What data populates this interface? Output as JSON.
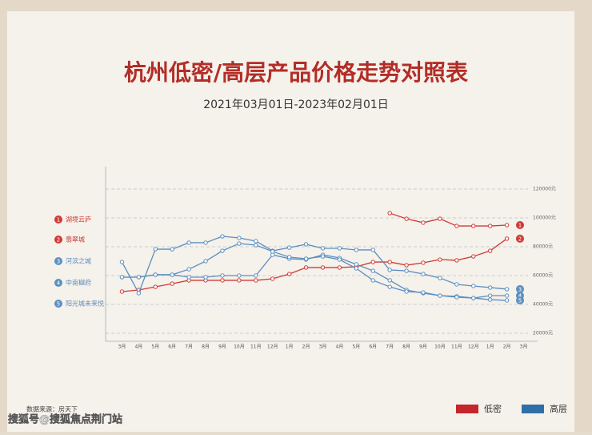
{
  "chart_data": {
    "type": "line",
    "title": "杭州低密/高层产品价格走势对照表",
    "subtitle": "2021年03月01日-2023年02月01日",
    "source": "数据来源：房天下",
    "watermark": "搜狐号@搜狐焦点荆门站",
    "categories": [
      "3月",
      "4月",
      "5月",
      "6月",
      "7月",
      "8月",
      "9月",
      "10月",
      "11月",
      "12月",
      "1月",
      "2月",
      "3月",
      "4月",
      "5月",
      "6月",
      "7月",
      "8月",
      "9月",
      "10月",
      "11月",
      "12月",
      "1月",
      "2月",
      "3月"
    ],
    "ylim": [
      15000,
      135000
    ],
    "yticks": [
      {
        "value": 20000,
        "label": "20000元"
      },
      {
        "value": 40000,
        "label": "40000元"
      },
      {
        "value": 60000,
        "label": "60000元"
      },
      {
        "value": 80000,
        "label": "80000元"
      },
      {
        "value": 100000,
        "label": "100000元"
      },
      {
        "value": 120000,
        "label": "120000元"
      }
    ],
    "grid": true,
    "groups": [
      {
        "name": "低密",
        "color": "#c4262b"
      },
      {
        "name": "高层",
        "color": "#2f6fa8"
      }
    ],
    "series": [
      {
        "name": "湖境云庐",
        "label": "1",
        "color": "#cf3a36",
        "values": [
          null,
          null,
          null,
          null,
          null,
          null,
          null,
          null,
          null,
          null,
          null,
          null,
          null,
          null,
          null,
          null,
          103300,
          99400,
          96700,
          99400,
          94400,
          94400,
          94400,
          95000,
          null
        ]
      },
      {
        "name": "翡翠城",
        "label": "2",
        "color": "#cf3a36",
        "values": [
          48900,
          50000,
          52200,
          54400,
          56700,
          56700,
          56700,
          56700,
          56700,
          57800,
          61100,
          65600,
          65600,
          65600,
          66100,
          69400,
          69400,
          67200,
          68900,
          71100,
          70600,
          73300,
          77200,
          85600,
          null
        ]
      },
      {
        "name": "河滨之城",
        "label": "3",
        "color": "#5b8fbf",
        "values": [
          69400,
          47800,
          78300,
          78300,
          82800,
          82800,
          87200,
          86100,
          83900,
          77200,
          79400,
          81700,
          78900,
          78900,
          77800,
          77800,
          63900,
          63300,
          61100,
          58300,
          53900,
          52800,
          51700,
          50600,
          null
        ]
      },
      {
        "name": "中南樾府",
        "label": "4",
        "color": "#5b8fbf",
        "values": [
          58900,
          58900,
          60600,
          60600,
          58900,
          58900,
          60000,
          60000,
          60000,
          74400,
          71700,
          71100,
          74400,
          72200,
          67800,
          63300,
          56700,
          50000,
          47800,
          46100,
          45600,
          44400,
          46100,
          46100,
          null
        ]
      },
      {
        "name": "阳光城未来悦",
        "label": "5",
        "color": "#5b8fbf",
        "values": [
          58900,
          58900,
          60600,
          60600,
          64400,
          70000,
          77200,
          82200,
          81100,
          76700,
          72800,
          71700,
          73300,
          71100,
          65000,
          56700,
          52200,
          48900,
          48300,
          46100,
          45000,
          44400,
          43300,
          42800,
          null
        ]
      }
    ]
  }
}
